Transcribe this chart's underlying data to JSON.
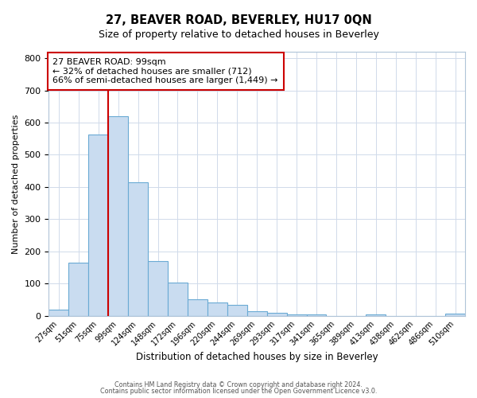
{
  "title": "27, BEAVER ROAD, BEVERLEY, HU17 0QN",
  "subtitle": "Size of property relative to detached houses in Beverley",
  "xlabel": "Distribution of detached houses by size in Beverley",
  "ylabel": "Number of detached properties",
  "bar_labels": [
    "27sqm",
    "51sqm",
    "75sqm",
    "99sqm",
    "124sqm",
    "148sqm",
    "172sqm",
    "196sqm",
    "220sqm",
    "244sqm",
    "269sqm",
    "293sqm",
    "317sqm",
    "341sqm",
    "365sqm",
    "389sqm",
    "413sqm",
    "438sqm",
    "462sqm",
    "486sqm",
    "510sqm"
  ],
  "bar_values": [
    20,
    165,
    562,
    619,
    415,
    170,
    103,
    52,
    40,
    33,
    13,
    10,
    4,
    3,
    0,
    0,
    3,
    0,
    0,
    0,
    6
  ],
  "bar_color": "#c9dcf0",
  "bar_edge_color": "#6aaad4",
  "vline_x": 3,
  "vline_color": "#cc0000",
  "annotation_line1": "27 BEAVER ROAD: 99sqm",
  "annotation_line2": "← 32% of detached houses are smaller (712)",
  "annotation_line3": "66% of semi-detached houses are larger (1,449) →",
  "annotation_box_color": "#ffffff",
  "annotation_box_edge": "#cc0000",
  "ylim": [
    0,
    820
  ],
  "yticks": [
    0,
    100,
    200,
    300,
    400,
    500,
    600,
    700,
    800
  ],
  "footer_line1": "Contains HM Land Registry data © Crown copyright and database right 2024.",
  "footer_line2": "Contains public sector information licensed under the Open Government Licence v3.0.",
  "bg_color": "#ffffff",
  "grid_color": "#d0daea"
}
